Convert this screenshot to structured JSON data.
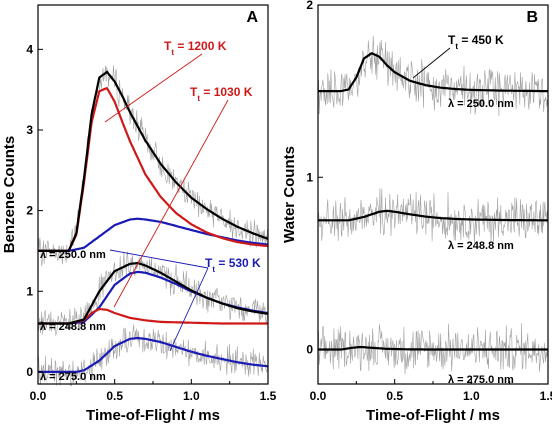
{
  "colors": {
    "fit": "#000000",
    "red": "#d01818",
    "blue": "#1a1ab4",
    "noise": "#a0a0a0"
  },
  "chart_data": [
    {
      "type": "line",
      "panel_label": "A",
      "xlabel": "Time-of-Flight / ms",
      "ylabel": "Benzene Counts",
      "xlim": [
        0.0,
        1.5
      ],
      "ylim": [
        -0.15,
        4.55
      ],
      "x_ticks": [
        "0.0",
        "0.5",
        "1.0",
        "1.5"
      ],
      "y_ticks": [
        "0",
        "1",
        "2",
        "3",
        "4"
      ],
      "annotations": [
        {
          "name": "Tt",
          "sub": "t",
          "rest": " = 1200 K",
          "color": "red"
        },
        {
          "name": "Tt",
          "sub": "t",
          "rest": " = 1030 K",
          "color": "red"
        },
        {
          "name": "Tt",
          "sub": "t",
          "rest": " = 530 K",
          "color": "blue"
        }
      ],
      "traces": [
        {
          "wavelength": "λ = 250.0 nm",
          "baseline": 1.5,
          "series": [
            {
              "color": "fit",
              "x": [
                0.2,
                0.25,
                0.3,
                0.35,
                0.4,
                0.45,
                0.5,
                0.55,
                0.6,
                0.7,
                0.8,
                0.9,
                1.0,
                1.1,
                1.2,
                1.3,
                1.4,
                1.5
              ],
              "y": [
                0.0,
                0.22,
                0.9,
                1.7,
                2.15,
                2.22,
                2.1,
                1.92,
                1.72,
                1.37,
                1.08,
                0.85,
                0.66,
                0.52,
                0.4,
                0.3,
                0.22,
                0.15
              ]
            },
            {
              "color": "red",
              "x": [
                0.2,
                0.25,
                0.3,
                0.35,
                0.4,
                0.45,
                0.5,
                0.55,
                0.6,
                0.7,
                0.8,
                0.9,
                1.0,
                1.1,
                1.2,
                1.3,
                1.4,
                1.5
              ],
              "y": [
                0.0,
                0.2,
                0.85,
                1.6,
                1.98,
                2.02,
                1.85,
                1.6,
                1.36,
                0.95,
                0.67,
                0.47,
                0.33,
                0.23,
                0.16,
                0.11,
                0.08,
                0.06
              ]
            },
            {
              "color": "blue",
              "x": [
                0.2,
                0.3,
                0.4,
                0.5,
                0.6,
                0.65,
                0.7,
                0.8,
                0.9,
                1.0,
                1.1,
                1.2,
                1.3,
                1.4,
                1.5
              ],
              "y": [
                0.0,
                0.04,
                0.18,
                0.32,
                0.39,
                0.4,
                0.39,
                0.36,
                0.31,
                0.26,
                0.21,
                0.17,
                0.13,
                0.1,
                0.08
              ]
            }
          ]
        },
        {
          "wavelength": "λ = 248.8 nm",
          "baseline": 0.6,
          "series": [
            {
              "color": "fit",
              "x": [
                0.2,
                0.3,
                0.4,
                0.5,
                0.6,
                0.65,
                0.7,
                0.8,
                0.9,
                1.0,
                1.1,
                1.2,
                1.3,
                1.4,
                1.5
              ],
              "y": [
                0.0,
                0.05,
                0.4,
                0.65,
                0.74,
                0.75,
                0.72,
                0.63,
                0.52,
                0.41,
                0.32,
                0.25,
                0.19,
                0.15,
                0.12
              ]
            },
            {
              "color": "red",
              "x": [
                0.2,
                0.3,
                0.35,
                0.4,
                0.45,
                0.5,
                0.6,
                0.7,
                0.8,
                1.0,
                1.2,
                1.5
              ],
              "y": [
                0.0,
                0.04,
                0.13,
                0.18,
                0.17,
                0.13,
                0.07,
                0.04,
                0.02,
                0.01,
                0.0,
                0.0
              ]
            },
            {
              "color": "blue",
              "x": [
                0.2,
                0.3,
                0.4,
                0.5,
                0.6,
                0.65,
                0.7,
                0.8,
                0.9,
                1.0,
                1.1,
                1.2,
                1.3,
                1.4,
                1.5
              ],
              "y": [
                0.0,
                0.02,
                0.2,
                0.48,
                0.62,
                0.64,
                0.63,
                0.57,
                0.49,
                0.4,
                0.32,
                0.25,
                0.2,
                0.16,
                0.13
              ]
            }
          ]
        },
        {
          "wavelength": "λ = 275.0 nm",
          "baseline": 0.0,
          "series": [
            {
              "color": "blue",
              "x": [
                0.25,
                0.3,
                0.4,
                0.5,
                0.6,
                0.65,
                0.7,
                0.8,
                0.9,
                1.0,
                1.1,
                1.2,
                1.3,
                1.4,
                1.5
              ],
              "y": [
                0.0,
                0.02,
                0.14,
                0.32,
                0.41,
                0.42,
                0.41,
                0.37,
                0.31,
                0.25,
                0.2,
                0.16,
                0.12,
                0.09,
                0.07
              ]
            }
          ]
        }
      ]
    },
    {
      "type": "line",
      "panel_label": "B",
      "xlabel": "Time-of-Flight / ms",
      "ylabel": "Water Counts",
      "xlim": [
        0.0,
        1.5
      ],
      "ylim": [
        -0.2,
        2.0
      ],
      "x_ticks": [
        "0.0",
        "0.5",
        "1.0",
        "1.5"
      ],
      "y_ticks": [
        "0",
        "1",
        "2"
      ],
      "annotations": [
        {
          "name": "Tt",
          "sub": "t",
          "rest": " = 450 K",
          "color": "fit"
        }
      ],
      "traces": [
        {
          "wavelength": "λ = 250.0 nm",
          "baseline": 1.5,
          "series": [
            {
              "color": "fit",
              "x": [
                0.15,
                0.2,
                0.25,
                0.3,
                0.35,
                0.4,
                0.45,
                0.5,
                0.6,
                0.7,
                0.8,
                0.9,
                1.0,
                1.2,
                1.5
              ],
              "y": [
                0.0,
                0.01,
                0.08,
                0.19,
                0.22,
                0.2,
                0.15,
                0.11,
                0.06,
                0.035,
                0.02,
                0.012,
                0.007,
                0.003,
                0.0
              ]
            }
          ]
        },
        {
          "wavelength": "λ = 248.8 nm",
          "baseline": 0.75,
          "series": [
            {
              "color": "fit",
              "x": [
                0.2,
                0.3,
                0.4,
                0.45,
                0.5,
                0.6,
                0.7,
                0.8,
                0.9,
                1.0,
                1.2,
                1.5
              ],
              "y": [
                0.0,
                0.02,
                0.05,
                0.055,
                0.05,
                0.035,
                0.022,
                0.013,
                0.008,
                0.005,
                0.002,
                0.0
              ]
            }
          ]
        },
        {
          "wavelength": "λ = 275.0 nm",
          "baseline": 0.0,
          "series": [
            {
              "color": "fit",
              "x": [
                0.15,
                0.22,
                0.28,
                0.35,
                0.45,
                0.6,
                0.8,
                1.0,
                1.5
              ],
              "y": [
                0.0,
                0.01,
                0.015,
                0.01,
                0.004,
                0.001,
                0.0,
                0.0,
                0.0
              ]
            }
          ]
        }
      ]
    }
  ]
}
